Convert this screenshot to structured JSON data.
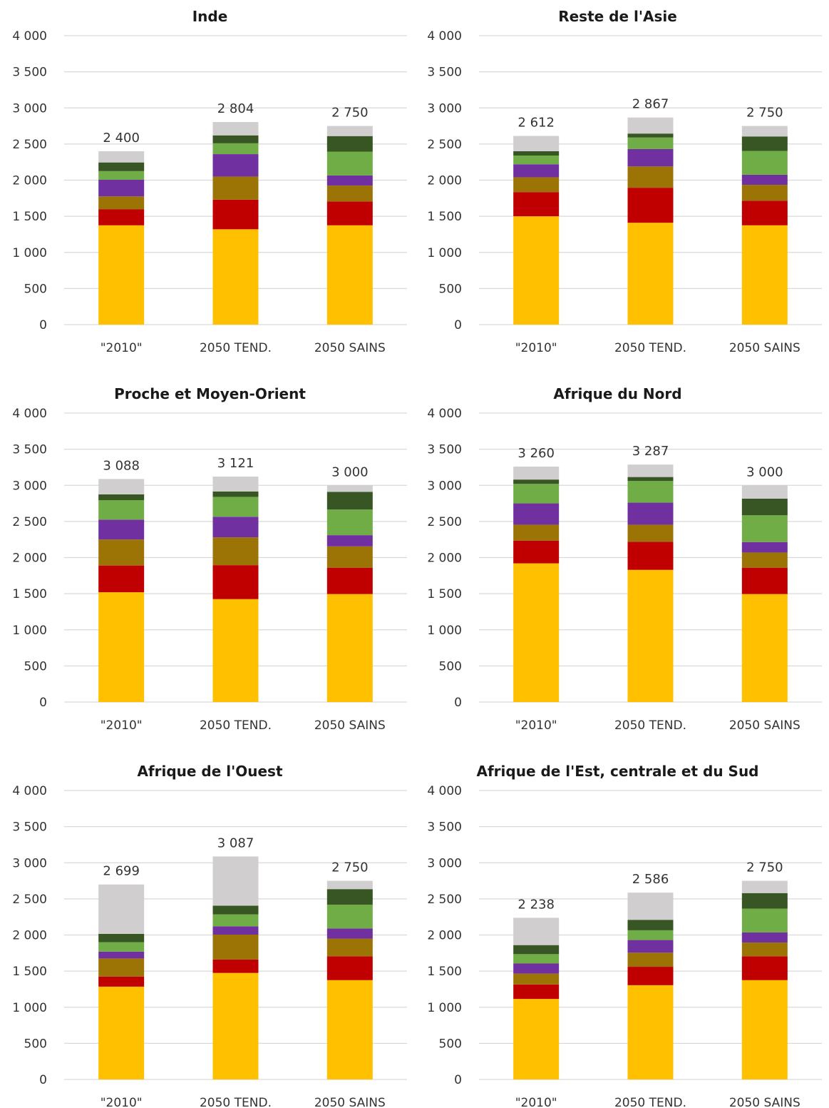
{
  "chart_data": [
    {
      "type": "bar",
      "stacked": true,
      "title": "Inde",
      "categories": [
        "\"2010\"",
        "2050 TEND.",
        "2050 SAINS"
      ],
      "ylim": [
        0,
        4000
      ],
      "yticks": [
        "0",
        "500",
        "1 000",
        "1 500",
        "2 000",
        "2 500",
        "3 000",
        "3 500",
        "4 000"
      ],
      "ytick_values": [
        0,
        500,
        1000,
        1500,
        2000,
        2500,
        3000,
        3500,
        4000
      ],
      "grid": true,
      "series": [
        {
          "color": "#FFC000",
          "values": [
            1375,
            1320,
            1375
          ]
        },
        {
          "color": "#C00000",
          "values": [
            220,
            410,
            330
          ]
        },
        {
          "color": "#9C7405",
          "values": [
            180,
            320,
            220
          ]
        },
        {
          "color": "#7030A0",
          "values": [
            230,
            310,
            140
          ]
        },
        {
          "color": "#70AD47",
          "values": [
            120,
            150,
            330
          ]
        },
        {
          "color": "#375623",
          "values": [
            120,
            110,
            215
          ]
        },
        {
          "color": "#D0CECE",
          "values": [
            155,
            184,
            140
          ]
        }
      ],
      "totals": [
        "2 400",
        "2 804",
        "2 750"
      ],
      "total_values": [
        2400,
        2804,
        2750
      ]
    },
    {
      "type": "bar",
      "stacked": true,
      "title": "Reste de l'Asie",
      "categories": [
        "\"2010\"",
        "2050 TEND.",
        "2050 SAINS"
      ],
      "ylim": [
        0,
        4000
      ],
      "yticks": [
        "0",
        "500",
        "1 000",
        "1 500",
        "2 000",
        "2 500",
        "3 000",
        "3 500",
        "4 000"
      ],
      "ytick_values": [
        0,
        500,
        1000,
        1500,
        2000,
        2500,
        3000,
        3500,
        4000
      ],
      "grid": true,
      "series": [
        {
          "color": "#FFC000",
          "values": [
            1500,
            1410,
            1375
          ]
        },
        {
          "color": "#C00000",
          "values": [
            335,
            485,
            340
          ]
        },
        {
          "color": "#9C7405",
          "values": [
            205,
            295,
            220
          ]
        },
        {
          "color": "#7030A0",
          "values": [
            180,
            240,
            140
          ]
        },
        {
          "color": "#70AD47",
          "values": [
            120,
            160,
            330
          ]
        },
        {
          "color": "#375623",
          "values": [
            60,
            55,
            200
          ]
        },
        {
          "color": "#D0CECE",
          "values": [
            212,
            222,
            145
          ]
        }
      ],
      "totals": [
        "2 612",
        "2 867",
        "2 750"
      ],
      "total_values": [
        2612,
        2867,
        2750
      ]
    },
    {
      "type": "bar",
      "stacked": true,
      "title": "Proche et Moyen-Orient",
      "categories": [
        "\"2010\"",
        "2050 TEND.",
        "2050 SAINS"
      ],
      "ylim": [
        0,
        4000
      ],
      "yticks": [
        "0",
        "500",
        "1 000",
        "1 500",
        "2 000",
        "2 500",
        "3 000",
        "3 500",
        "4 000"
      ],
      "ytick_values": [
        0,
        500,
        1000,
        1500,
        2000,
        2500,
        3000,
        3500,
        4000
      ],
      "grid": true,
      "series": [
        {
          "color": "#FFC000",
          "values": [
            1520,
            1425,
            1495
          ]
        },
        {
          "color": "#C00000",
          "values": [
            370,
            470,
            365
          ]
        },
        {
          "color": "#9C7405",
          "values": [
            360,
            385,
            295
          ]
        },
        {
          "color": "#7030A0",
          "values": [
            275,
            285,
            155
          ]
        },
        {
          "color": "#70AD47",
          "values": [
            270,
            275,
            355
          ]
        },
        {
          "color": "#375623",
          "values": [
            80,
            75,
            245
          ]
        },
        {
          "color": "#D0CECE",
          "values": [
            213,
            206,
            90
          ]
        }
      ],
      "totals": [
        "3 088",
        "3 121",
        "3 000"
      ],
      "total_values": [
        3088,
        3121,
        3000
      ]
    },
    {
      "type": "bar",
      "stacked": true,
      "title": "Afrique du Nord",
      "categories": [
        "\"2010\"",
        "2050 TEND.",
        "2050 SAINS"
      ],
      "ylim": [
        0,
        4000
      ],
      "yticks": [
        "0",
        "500",
        "1 000",
        "1 500",
        "2 000",
        "2 500",
        "3 000",
        "3 500",
        "4 000"
      ],
      "ytick_values": [
        0,
        500,
        1000,
        1500,
        2000,
        2500,
        3000,
        3500,
        4000
      ],
      "grid": true,
      "series": [
        {
          "color": "#FFC000",
          "values": [
            1920,
            1830,
            1495
          ]
        },
        {
          "color": "#C00000",
          "values": [
            315,
            390,
            365
          ]
        },
        {
          "color": "#9C7405",
          "values": [
            220,
            235,
            210
          ]
        },
        {
          "color": "#7030A0",
          "values": [
            295,
            305,
            145
          ]
        },
        {
          "color": "#70AD47",
          "values": [
            270,
            300,
            370
          ]
        },
        {
          "color": "#375623",
          "values": [
            60,
            55,
            230
          ]
        },
        {
          "color": "#D0CECE",
          "values": [
            180,
            172,
            185
          ]
        }
      ],
      "totals": [
        "3 260",
        "3 287",
        "3 000"
      ],
      "total_values": [
        3260,
        3287,
        3000
      ]
    },
    {
      "type": "bar",
      "stacked": true,
      "title": "Afrique de l'Ouest",
      "categories": [
        "\"2010\"",
        "2050 TEND.",
        "2050 SAINS"
      ],
      "ylim": [
        0,
        4000
      ],
      "yticks": [
        "0",
        "500",
        "1 000",
        "1 500",
        "2 000",
        "2 500",
        "3 000",
        "3 500",
        "4 000"
      ],
      "ytick_values": [
        0,
        500,
        1000,
        1500,
        2000,
        2500,
        3000,
        3500,
        4000
      ],
      "grid": true,
      "series": [
        {
          "color": "#FFC000",
          "values": [
            1285,
            1475,
            1375
          ]
        },
        {
          "color": "#C00000",
          "values": [
            140,
            185,
            330
          ]
        },
        {
          "color": "#9C7405",
          "values": [
            250,
            345,
            245
          ]
        },
        {
          "color": "#7030A0",
          "values": [
            95,
            115,
            140
          ]
        },
        {
          "color": "#70AD47",
          "values": [
            130,
            165,
            330
          ]
        },
        {
          "color": "#375623",
          "values": [
            115,
            120,
            215
          ]
        },
        {
          "color": "#D0CECE",
          "values": [
            684,
            682,
            115
          ]
        }
      ],
      "totals": [
        "2 699",
        "3 087",
        "2 750"
      ],
      "total_values": [
        2699,
        3087,
        2750
      ]
    },
    {
      "type": "bar",
      "stacked": true,
      "title": "Afrique de l'Est, centrale et du Sud",
      "categories": [
        "\"2010\"",
        "2050 TEND.",
        "2050 SAINS"
      ],
      "ylim": [
        0,
        4000
      ],
      "yticks": [
        "0",
        "500",
        "1 000",
        "1 500",
        "2 000",
        "2 500",
        "3 000",
        "3 500",
        "4 000"
      ],
      "ytick_values": [
        0,
        500,
        1000,
        1500,
        2000,
        2500,
        3000,
        3500,
        4000
      ],
      "grid": true,
      "series": [
        {
          "color": "#FFC000",
          "values": [
            1115,
            1305,
            1375
          ]
        },
        {
          "color": "#C00000",
          "values": [
            200,
            255,
            330
          ]
        },
        {
          "color": "#9C7405",
          "values": [
            150,
            195,
            190
          ]
        },
        {
          "color": "#7030A0",
          "values": [
            140,
            175,
            140
          ]
        },
        {
          "color": "#70AD47",
          "values": [
            130,
            135,
            330
          ]
        },
        {
          "color": "#375623",
          "values": [
            125,
            145,
            215
          ]
        },
        {
          "color": "#D0CECE",
          "values": [
            378,
            376,
            170
          ]
        }
      ],
      "totals": [
        "2 238",
        "2 586",
        "2 750"
      ],
      "total_values": [
        2238,
        2586,
        2750
      ]
    }
  ]
}
